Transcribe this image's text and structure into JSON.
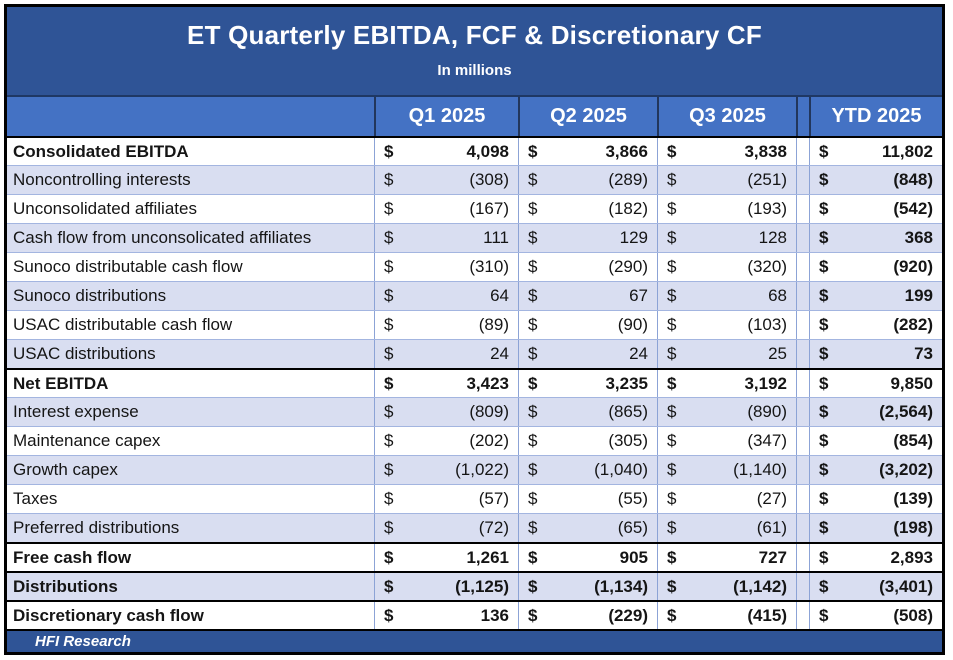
{
  "title": {
    "heading": "ET Quarterly EBITDA, FCF & Discretionary CF",
    "subtitle": "In millions"
  },
  "header": {
    "row_label_header": "",
    "columns": [
      "Q1 2025",
      "Q2 2025",
      "Q3 2025",
      "YTD 2025"
    ]
  },
  "currency": "$",
  "footer": {
    "text": "HFI Research"
  },
  "colors": {
    "title_band": "#2F5496",
    "column_header_band": "#4472C4",
    "row_band": "#D9DEF1",
    "grid_line": "#8CA3D6",
    "section_border": "#000000",
    "header_divider": "#22365C",
    "text": "#151515",
    "header_text": "#ffffff"
  },
  "chart_data": {
    "type": "table",
    "title": "ET Quarterly EBITDA, FCF & Discretionary CF",
    "subtitle": "In millions",
    "unit": "USD millions",
    "columns": [
      "Q1 2025",
      "Q2 2025",
      "Q3 2025",
      "YTD 2025"
    ],
    "source": "HFI Research",
    "rows": [
      {
        "label": "Consolidated EBITDA",
        "bold": true,
        "section_start": true,
        "display": [
          "4,098",
          "3,866",
          "3,838",
          "11,802"
        ],
        "values": [
          4098,
          3866,
          3838,
          11802
        ]
      },
      {
        "label": "Noncontrolling interests",
        "bold": false,
        "section_start": false,
        "display": [
          "(308)",
          "(289)",
          "(251)",
          "(848)"
        ],
        "values": [
          -308,
          -289,
          -251,
          -848
        ]
      },
      {
        "label": "Unconsolidated affiliates",
        "bold": false,
        "section_start": false,
        "display": [
          "(167)",
          "(182)",
          "(193)",
          "(542)"
        ],
        "values": [
          -167,
          -182,
          -193,
          -542
        ]
      },
      {
        "label": "Cash flow from unconsolicated affiliates",
        "bold": false,
        "section_start": false,
        "display": [
          "111",
          "129",
          "128",
          "368"
        ],
        "values": [
          111,
          129,
          128,
          368
        ]
      },
      {
        "label": "Sunoco distributable cash flow",
        "bold": false,
        "section_start": false,
        "display": [
          "(310)",
          "(290)",
          "(320)",
          "(920)"
        ],
        "values": [
          -310,
          -290,
          -320,
          -920
        ]
      },
      {
        "label": "Sunoco distributions",
        "bold": false,
        "section_start": false,
        "display": [
          "64",
          "67",
          "68",
          "199"
        ],
        "values": [
          64,
          67,
          68,
          199
        ]
      },
      {
        "label": "USAC distributable cash flow",
        "bold": false,
        "section_start": false,
        "display": [
          "(89)",
          "(90)",
          "(103)",
          "(282)"
        ],
        "values": [
          -89,
          -90,
          -103,
          -282
        ]
      },
      {
        "label": "USAC distributions",
        "bold": false,
        "section_start": false,
        "display": [
          "24",
          "24",
          "25",
          "73"
        ],
        "values": [
          24,
          24,
          25,
          73
        ]
      },
      {
        "label": "Net EBITDA",
        "bold": true,
        "section_start": true,
        "display": [
          "3,423",
          "3,235",
          "3,192",
          "9,850"
        ],
        "values": [
          3423,
          3235,
          3192,
          9850
        ]
      },
      {
        "label": "Interest expense",
        "bold": false,
        "section_start": false,
        "display": [
          "(809)",
          "(865)",
          "(890)",
          "(2,564)"
        ],
        "values": [
          -809,
          -865,
          -890,
          -2564
        ]
      },
      {
        "label": "Maintenance capex",
        "bold": false,
        "section_start": false,
        "display": [
          "(202)",
          "(305)",
          "(347)",
          "(854)"
        ],
        "values": [
          -202,
          -305,
          -347,
          -854
        ]
      },
      {
        "label": "Growth capex",
        "bold": false,
        "section_start": false,
        "display": [
          "(1,022)",
          "(1,040)",
          "(1,140)",
          "(3,202)"
        ],
        "values": [
          -1022,
          -1040,
          -1140,
          -3202
        ]
      },
      {
        "label": "Taxes",
        "bold": false,
        "section_start": false,
        "display": [
          "(57)",
          "(55)",
          "(27)",
          "(139)"
        ],
        "values": [
          -57,
          -55,
          -27,
          -139
        ]
      },
      {
        "label": "Preferred distributions",
        "bold": false,
        "section_start": false,
        "display": [
          "(72)",
          "(65)",
          "(61)",
          "(198)"
        ],
        "values": [
          -72,
          -65,
          -61,
          -198
        ]
      },
      {
        "label": "Free cash flow",
        "bold": true,
        "section_start": true,
        "display": [
          "1,261",
          "905",
          "727",
          "2,893"
        ],
        "values": [
          1261,
          905,
          727,
          2893
        ]
      },
      {
        "label": "Distributions",
        "bold": true,
        "section_start": true,
        "display": [
          "(1,125)",
          "(1,134)",
          "(1,142)",
          "(3,401)"
        ],
        "values": [
          -1125,
          -1134,
          -1142,
          -3401
        ]
      },
      {
        "label": "Discretionary cash flow",
        "bold": true,
        "section_start": true,
        "display": [
          "136",
          "(229)",
          "(415)",
          "(508)"
        ],
        "values": [
          136,
          -229,
          -415,
          -508
        ]
      }
    ]
  }
}
